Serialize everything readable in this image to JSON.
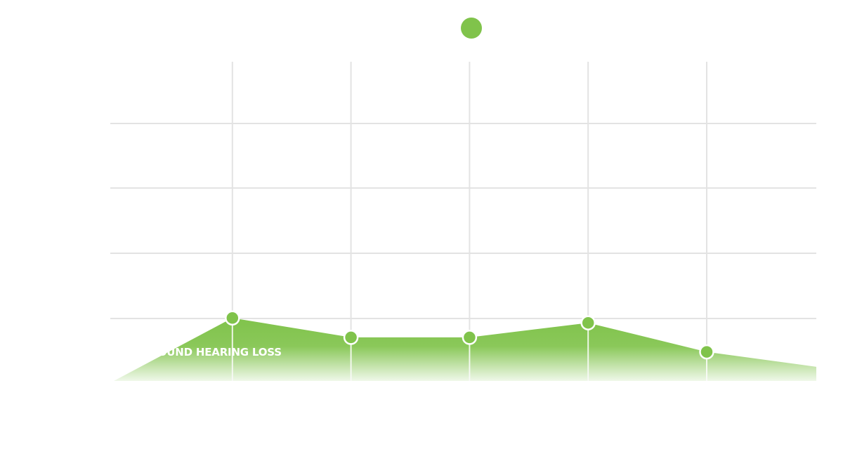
{
  "chart_data": {
    "type": "area",
    "title": "",
    "xlabel": "",
    "ylabel": "",
    "x": [
      0,
      1,
      2,
      3,
      4,
      5,
      6
    ],
    "xlim": [
      0,
      6
    ],
    "ylim": [
      0,
      1
    ],
    "series": [
      {
        "values": [
          0.0,
          0.195,
          0.135,
          0.135,
          0.18,
          0.09,
          0.04
        ],
        "markers": [
          false,
          true,
          true,
          true,
          true,
          true,
          false
        ]
      }
    ],
    "grid": true,
    "band_label": "PROFOUND HEARING  LOSS",
    "legend_marker": true,
    "colors": {
      "fill": "#80c34b",
      "marker": "#80c34b",
      "marker_stroke": "#ffffff",
      "grid": "#e3e3e3",
      "label": "#ffffff",
      "legend": "#80c34b"
    }
  }
}
